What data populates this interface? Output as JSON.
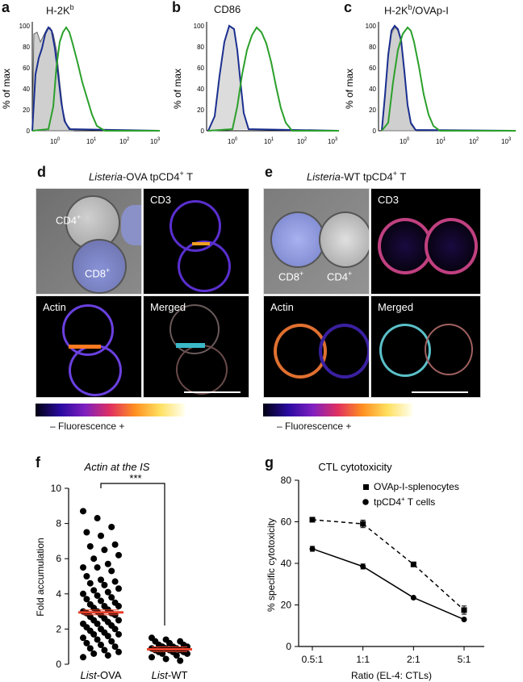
{
  "panels": {
    "a": {
      "letter": "a",
      "title": "H-2K",
      "title_sup": "b"
    },
    "b": {
      "letter": "b",
      "title": "CD86"
    },
    "c": {
      "letter": "c",
      "title": "H-2K",
      "title_sup": "b",
      "title_rest": "/OVAp-I"
    },
    "d": {
      "letter": "d",
      "title_italic": "Listeria",
      "title_rest": "-OVA tpCD4",
      "title_sup": "+",
      "title_end": " T"
    },
    "e": {
      "letter": "e",
      "title_italic": "Listeria",
      "title_rest": "-WT tpCD4",
      "title_sup": "+",
      "title_end": " T"
    },
    "f": {
      "letter": "f"
    },
    "g": {
      "letter": "g"
    }
  },
  "histograms": {
    "ylabel": "% of max",
    "yticks": [
      "0",
      "20",
      "40",
      "60",
      "80",
      "100"
    ],
    "xticks": [
      "10",
      "10",
      "10",
      "10"
    ],
    "xtick_exps": [
      "0",
      "1",
      "2",
      "3"
    ]
  },
  "microscopy": {
    "d": {
      "cd4": "CD4",
      "cd4_sup": "+",
      "cd8": "CD8",
      "cd8_sup": "+",
      "cd3": "CD3",
      "actin": "Actin",
      "merged": "Merged"
    },
    "e": {
      "cd4": "CD4",
      "cd4_sup": "+",
      "cd8": "CD8",
      "cd8_sup": "+",
      "cd3": "CD3",
      "actin": "Actin",
      "merged": "Merged"
    },
    "colorbar_label": "– Fluorescence +"
  },
  "chart_data": [
    {
      "type": "scatter",
      "panel": "f",
      "title": "Actin at the IS",
      "ylabel": "Fold accumulation",
      "categories": [
        "List-OVA",
        "List-WT"
      ],
      "category_italic": [
        "List",
        "List"
      ],
      "category_rest": [
        "-OVA",
        "-WT"
      ],
      "ylim": [
        0,
        10
      ],
      "yticks": [
        "0",
        "2",
        "4",
        "6",
        "8",
        "10"
      ],
      "means": [
        2.95,
        0.85
      ],
      "significance": "***",
      "colors": {
        "points": "#000000",
        "mean": "#e8402a"
      }
    },
    {
      "type": "line",
      "panel": "g",
      "title": "CTL cytotoxicity",
      "xlabel": "Ratio (EL-4: CTLs)",
      "ylabel": "% specific cytotoxicity",
      "categories": [
        "0.5:1",
        "1:1",
        "2:1",
        "5:1"
      ],
      "ylim": [
        0,
        80
      ],
      "yticks": [
        "0",
        "20",
        "40",
        "60",
        "80"
      ],
      "series": [
        {
          "name": "OVAp-I-splenocytes",
          "values": [
            61,
            59,
            39.5,
            17.5
          ],
          "errors": [
            0.8,
            1.8,
            0.5,
            2.0
          ],
          "style": "dashed",
          "marker": "square"
        },
        {
          "name_main": "tpCD4",
          "name_sup": "+",
          "name_end": " T cells",
          "values": [
            47,
            38.5,
            23.5,
            13
          ],
          "errors": [
            1.2,
            1.2,
            0.5,
            0.5
          ],
          "style": "solid",
          "marker": "circle"
        }
      ]
    }
  ]
}
